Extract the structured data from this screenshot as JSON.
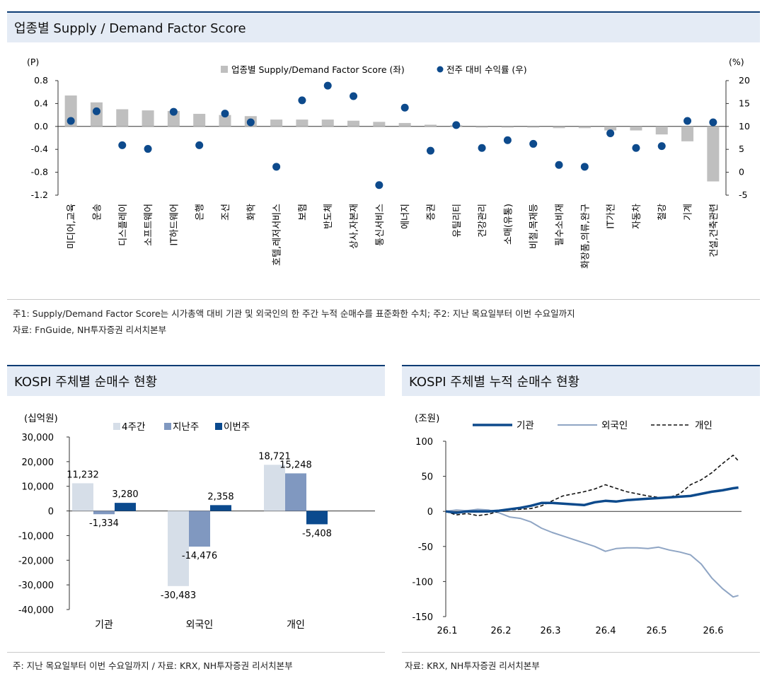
{
  "sections": {
    "top_title": "업종별 Supply / Demand Factor Score",
    "left_title": "KOSPI 주체별 순매수 현황",
    "right_title": "KOSPI 주체별 누적 순매수 현황"
  },
  "notes": {
    "top_note1": "주1: Supply/Demand Factor Score는 시가총액 대비 기관 및 외국인의 한 주간 누적 순매수를 표준화한 수치; 주2: 지난 목요일부터 이번 수요일까지",
    "top_note2": "자료: FnGuide, NH투자증권 리서치본부",
    "left_note": "주: 지난 목요일부터 이번 수요일까지 / 자료: KRX, NH투자증권 리서치본부",
    "right_note": "자료: KRX, NH투자증권 리서치본부"
  },
  "colors": {
    "header_bg": "#e4ebf5",
    "header_border": "#0d3c74",
    "score_bar": "#bfbfbf",
    "dot": "#0d4a8c",
    "w4": "#d6dee8",
    "last": "#8098c0",
    "this": "#0b4a8e",
    "inst_line": "#0d4a8c",
    "foreign_line": "#8fa5c4",
    "indiv_line": "#111111"
  },
  "chart_data": [
    {
      "type": "bar",
      "title": "업종별 Supply / Demand Factor Score",
      "y_left_unit": "(P)",
      "y_right_unit": "(%)",
      "ylim_left": [
        -1.2,
        0.8
      ],
      "ylim_right": [
        -5,
        20
      ],
      "yticks_left": [
        "0.8",
        "0.4",
        "0.0",
        "-0.4",
        "-0.8",
        "-1.2"
      ],
      "yticks_right": [
        "20",
        "15",
        "10",
        "5",
        "0",
        "-5"
      ],
      "categories": [
        "미디어,교육",
        "운송",
        "디스플레이",
        "소프트웨어",
        "IT하드웨어",
        "은행",
        "조선",
        "화학",
        "호텔,레저서비스",
        "보험",
        "반도체",
        "상사,자본재",
        "통신서비스",
        "에너지",
        "증권",
        "유틸리티",
        "건강관리",
        "소매(유통)",
        "비철,목재등",
        "필수소비재",
        "화장품,의류,완구",
        "IT가전",
        "자동차",
        "철강",
        "기계",
        "건설,건축관련"
      ],
      "series": [
        {
          "name": "업종별 Supply/Demand Factor Score (좌)",
          "kind": "bar",
          "axis": "left",
          "values": [
            0.54,
            0.42,
            0.3,
            0.28,
            0.27,
            0.22,
            0.2,
            0.18,
            0.12,
            0.12,
            0.12,
            0.1,
            0.08,
            0.06,
            0.03,
            0.02,
            -0.02,
            -0.02,
            -0.02,
            -0.03,
            -0.03,
            -0.07,
            -0.07,
            -0.14,
            -0.26,
            -0.96
          ]
        },
        {
          "name": "전주 대비 수익률 (우)",
          "kind": "dot",
          "axis": "right",
          "values": [
            11.2,
            13.3,
            5.9,
            5.1,
            13.2,
            5.9,
            12.8,
            10.9,
            1.2,
            15.7,
            18.9,
            16.6,
            -2.8,
            14.1,
            4.7,
            10.3,
            5.3,
            7.0,
            6.2,
            1.6,
            1.2,
            8.5,
            5.3,
            5.7,
            11.2,
            10.9
          ]
        }
      ]
    },
    {
      "type": "bar",
      "title": "KOSPI 주체별 순매수 현황",
      "ylabel": "(십억원)",
      "ylim": [
        -40000,
        30000
      ],
      "yticks": [
        "30,000",
        "20,000",
        "10,000",
        "0",
        "-10,000",
        "-20,000",
        "-30,000",
        "-40,000"
      ],
      "categories": [
        "기관",
        "외국인",
        "개인"
      ],
      "series": [
        {
          "name": "4주간",
          "values": [
            11232,
            -30483,
            18721
          ],
          "labels": [
            "11,232",
            "-30,483",
            "18,721"
          ]
        },
        {
          "name": "지난주",
          "values": [
            -1334,
            -14476,
            15248
          ],
          "labels": [
            "-1,334",
            "-14,476",
            "15,248"
          ]
        },
        {
          "name": "이번주",
          "values": [
            3280,
            2358,
            -5408
          ],
          "labels": [
            "3,280",
            "2,358",
            "-5,408"
          ]
        }
      ]
    },
    {
      "type": "line",
      "title": "KOSPI 주체별 누적 순매수 현황",
      "ylabel": "(조원)",
      "ylim": [
        -150,
        100
      ],
      "yticks": [
        "100",
        "50",
        "0",
        "-50",
        "-100",
        "-150"
      ],
      "xticks": [
        "26.1",
        "26.2",
        "26.3",
        "26.4",
        "26.5",
        "26.6"
      ],
      "x_values": [
        0,
        0.2,
        0.4,
        0.6,
        0.8,
        1.0,
        1.2,
        1.4,
        1.6,
        1.8,
        2.0,
        2.2,
        2.4,
        2.6,
        2.8,
        3.0,
        3.2,
        3.4,
        3.6,
        3.8,
        4.0,
        4.2,
        4.4,
        4.6,
        4.8,
        5.0,
        5.2,
        5.4,
        5.5
      ],
      "series": [
        {
          "name": "기관",
          "values": [
            0,
            -2,
            0,
            0,
            0,
            1,
            3,
            5,
            8,
            12,
            12,
            11,
            10,
            9,
            13,
            15,
            14,
            16,
            17,
            18,
            19,
            20,
            21,
            22,
            25,
            28,
            30,
            33,
            34
          ]
        },
        {
          "name": "외국인",
          "values": [
            0,
            2,
            1,
            3,
            2,
            -2,
            -8,
            -10,
            -15,
            -24,
            -30,
            -35,
            -40,
            -45,
            -50,
            -57,
            -53,
            -52,
            -52,
            -53,
            -51,
            -55,
            -58,
            -62,
            -75,
            -95,
            -110,
            -122,
            -120
          ]
        },
        {
          "name": "개인",
          "values": [
            0,
            -5,
            -3,
            -6,
            -4,
            0,
            2,
            3,
            4,
            8,
            15,
            22,
            25,
            28,
            32,
            38,
            33,
            28,
            25,
            22,
            20,
            20,
            25,
            38,
            45,
            55,
            68,
            80,
            72
          ]
        }
      ]
    }
  ]
}
